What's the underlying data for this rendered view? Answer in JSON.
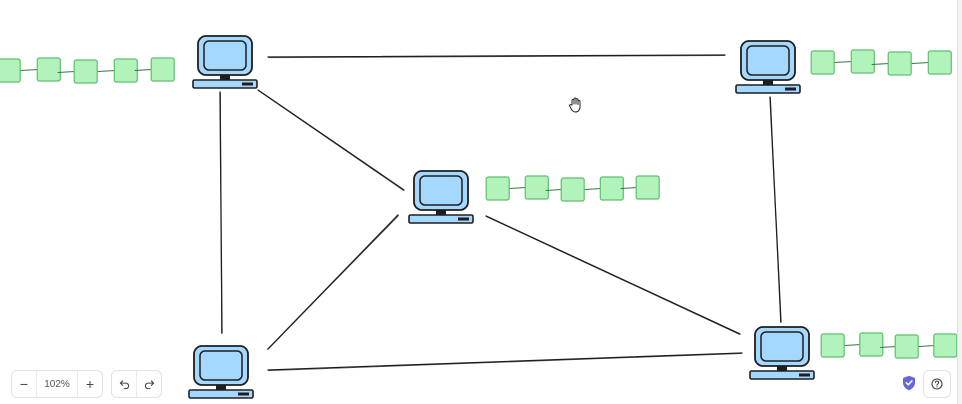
{
  "diagram": {
    "computer_fill": "#a5d8ff",
    "computer_stroke": "#1e1e1e",
    "block_fill": "#b2f2bb",
    "block_stroke": "#5fbf70",
    "nodes": [
      {
        "id": "node-top-left",
        "blocks": 5
      },
      {
        "id": "node-top-right",
        "blocks": 4
      },
      {
        "id": "node-center",
        "blocks": 5
      },
      {
        "id": "node-bottom-left",
        "blocks": 0
      },
      {
        "id": "node-bottom-right",
        "blocks": 4
      }
    ],
    "edges": [
      [
        "node-top-left",
        "node-top-right"
      ],
      [
        "node-top-left",
        "node-bottom-left"
      ],
      [
        "node-top-left",
        "node-center"
      ],
      [
        "node-top-right",
        "node-bottom-right"
      ],
      [
        "node-center",
        "node-bottom-left"
      ],
      [
        "node-center",
        "node-bottom-right"
      ],
      [
        "node-bottom-left",
        "node-bottom-right"
      ]
    ]
  },
  "toolbar": {
    "zoom_out_label": "−",
    "zoom_level": "102%",
    "zoom_in_label": "+",
    "undo_icon": "undo-icon",
    "redo_icon": "redo-icon",
    "shield_icon": "shield-check-icon",
    "shield_color": "#6965db",
    "help_icon": "help-icon"
  }
}
